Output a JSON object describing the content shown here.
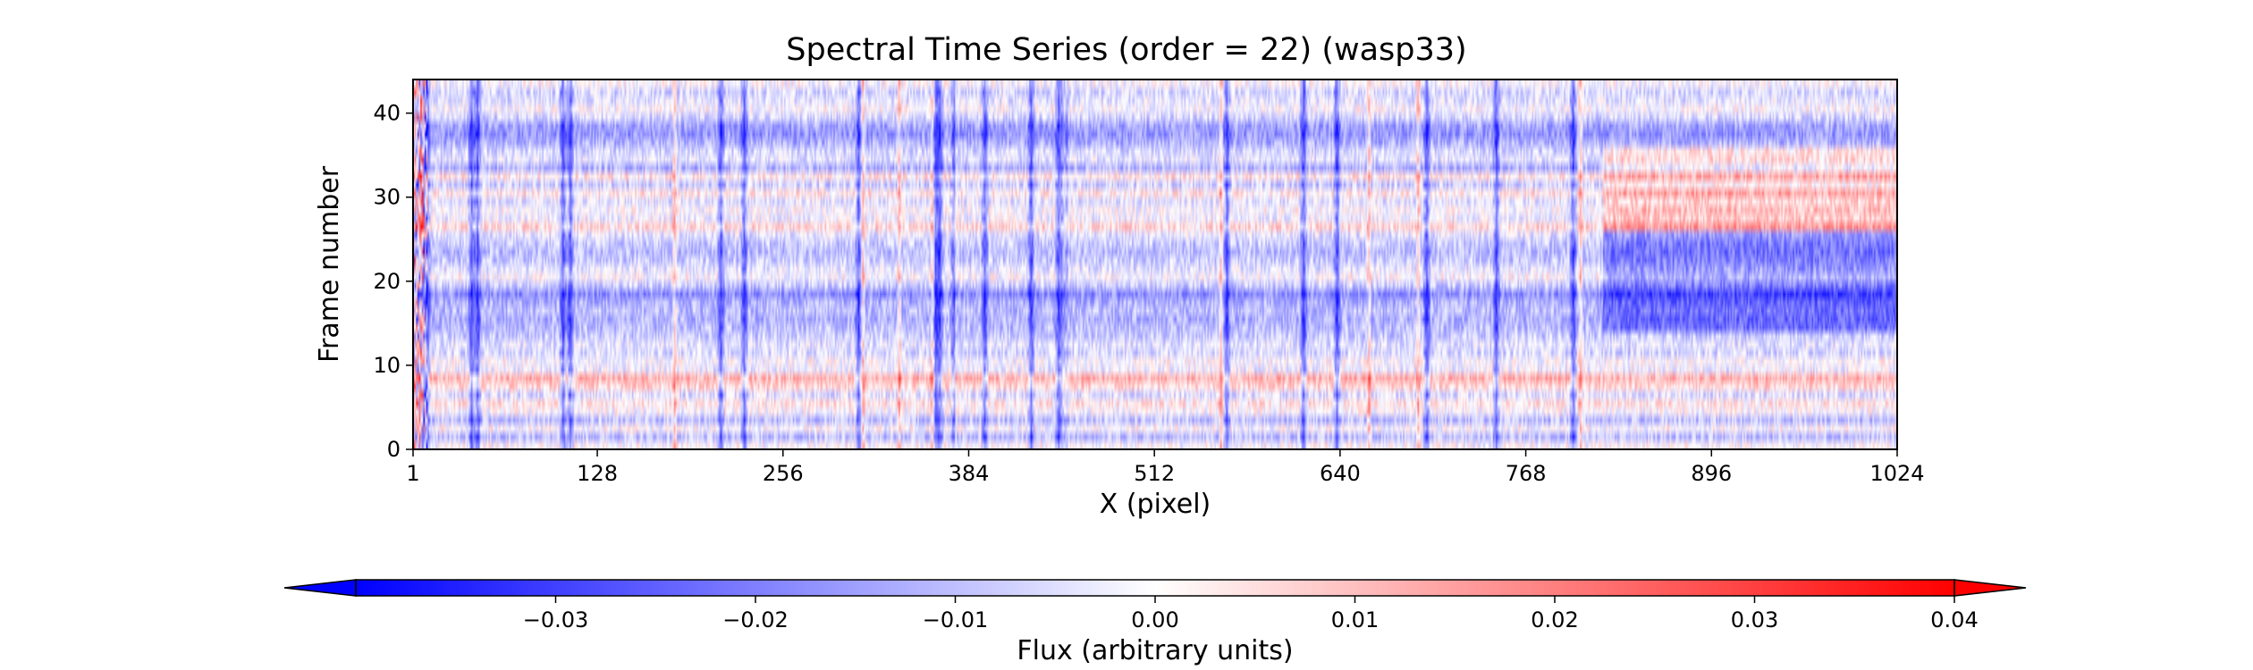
{
  "chart_data": {
    "type": "heatmap",
    "title": "Spectral Time Series (order = 22) (wasp33)",
    "xlabel": "X (pixel)",
    "ylabel": "Frame number",
    "xlim": [
      1,
      1024
    ],
    "ylim": [
      0,
      44
    ],
    "x_ticks": [
      "1",
      "128",
      "256",
      "384",
      "512",
      "640",
      "768",
      "896",
      "1024"
    ],
    "x_tick_values": [
      1,
      128,
      256,
      384,
      512,
      640,
      768,
      896,
      1024
    ],
    "y_ticks": [
      "0",
      "10",
      "20",
      "30",
      "40"
    ],
    "y_tick_values": [
      0,
      10,
      20,
      30,
      40
    ],
    "n_frames": 44,
    "n_pixels": 1024,
    "colormap": "bwr",
    "colors": {
      "low": "#0000ff",
      "mid": "#ffffff",
      "high": "#ff0000"
    },
    "color_range": [
      -0.04,
      0.04
    ],
    "colorbar": {
      "label": "Flux (arbitrary units)",
      "orientation": "horizontal",
      "placement": "bottom",
      "extend": "both",
      "ticks": [
        "−0.03",
        "−0.02",
        "−0.01",
        "0.00",
        "0.01",
        "0.02",
        "0.03",
        "0.04"
      ],
      "tick_values": [
        -0.03,
        -0.02,
        -0.01,
        0.0,
        0.01,
        0.02,
        0.03,
        0.04
      ]
    },
    "features": {
      "dark_columns": [
        9,
        40,
        44,
        103,
        108,
        212,
        228,
        307,
        360,
        363,
        373,
        394,
        426,
        445,
        449,
        561,
        614,
        637,
        699,
        747,
        800
      ],
      "red_columns": [
        180,
        310,
        335,
        358,
        374,
        449,
        557,
        659,
        693,
        805
      ],
      "row_offsets": [
        0.0,
        -0.01,
        0.0,
        -0.01,
        0.0,
        0.004,
        -0.005,
        0.006,
        0.012,
        -0.002,
        0.0,
        -0.006,
        -0.004,
        -0.008,
        -0.01,
        -0.012,
        -0.01,
        -0.012,
        -0.018,
        -0.008,
        0.0,
        -0.004,
        -0.008,
        -0.01,
        -0.008,
        -0.004,
        0.006,
        -0.002,
        0.0,
        -0.004,
        0.004,
        -0.008,
        0.004,
        -0.012,
        -0.004,
        -0.006,
        -0.012,
        -0.016,
        -0.014,
        -0.006,
        0.0,
        -0.004,
        -0.006,
        0.0
      ]
    }
  }
}
